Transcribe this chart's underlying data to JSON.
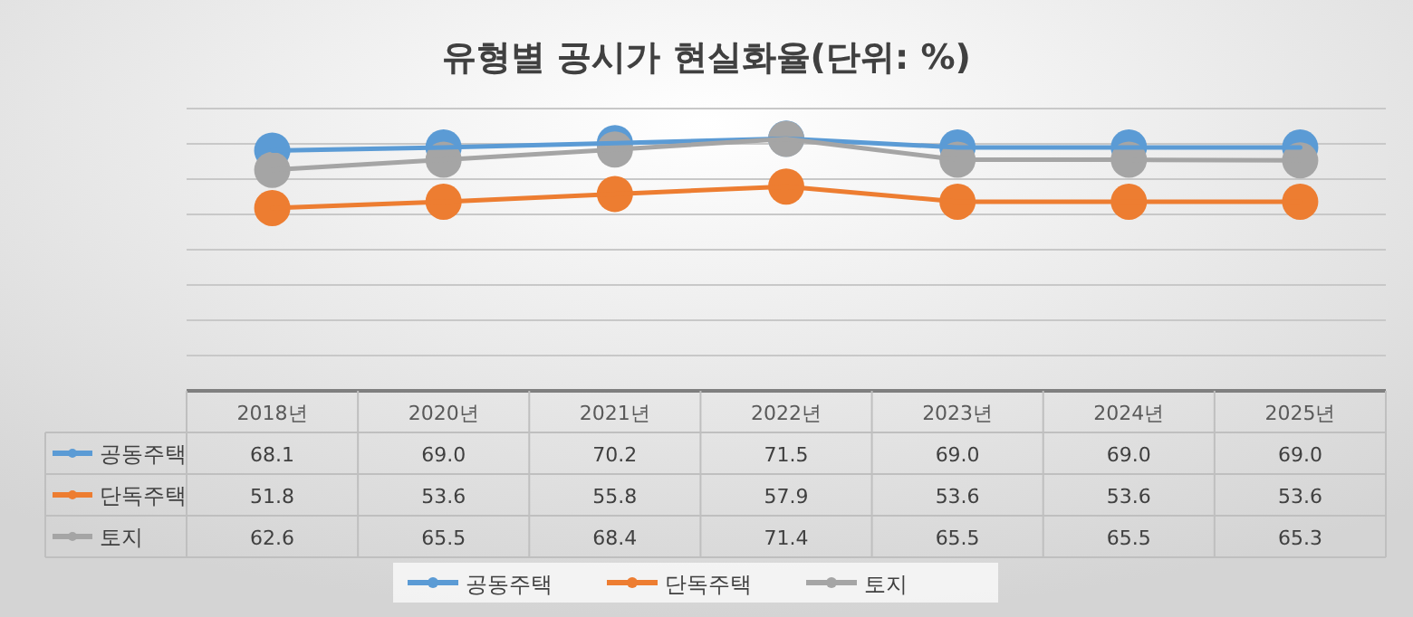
{
  "chart_data": {
    "type": "line",
    "title": "유형별 공시가 현실화율(단위: %)",
    "categories": [
      "2018년",
      "2020년",
      "2021년",
      "2022년",
      "2023년",
      "2024년",
      "2025년"
    ],
    "series": [
      {
        "name": "공동주택",
        "color": "#5b9bd5",
        "values": [
          68.1,
          69.0,
          70.2,
          71.5,
          69.0,
          69.0,
          69.0
        ],
        "value_labels": [
          "68.1",
          "69.0",
          "70.2",
          "71.5",
          "69.0",
          "69.0",
          "69.0"
        ]
      },
      {
        "name": "단독주택",
        "color": "#ed7d31",
        "values": [
          51.8,
          53.6,
          55.8,
          57.9,
          53.6,
          53.6,
          53.6
        ],
        "value_labels": [
          "51.8",
          "53.6",
          "55.8",
          "57.9",
          "53.6",
          "53.6",
          "53.6"
        ]
      },
      {
        "name": "토지",
        "color": "#a5a5a5",
        "values": [
          62.6,
          65.5,
          68.4,
          71.4,
          65.5,
          65.5,
          65.3
        ],
        "value_labels": [
          "62.6",
          "65.5",
          "68.4",
          "71.4",
          "65.5",
          "65.5",
          "65.3"
        ]
      }
    ],
    "ylim": [
      0,
      80
    ],
    "yticks": [
      {
        "value": 0,
        "label": null
      },
      {
        "value": 10,
        "label": null
      },
      {
        "value": 20,
        "label": null
      },
      {
        "value": 30,
        "label": null
      },
      {
        "value": 40,
        "label": null
      },
      {
        "value": 50,
        "label": null
      },
      {
        "value": 60,
        "label": null
      },
      {
        "value": 70,
        "label": null
      },
      {
        "value": 80,
        "label": null
      }
    ],
    "tick_labels": "x",
    "grid": "y",
    "legend": "bottom",
    "marker": "circle",
    "line_style": "solid"
  }
}
